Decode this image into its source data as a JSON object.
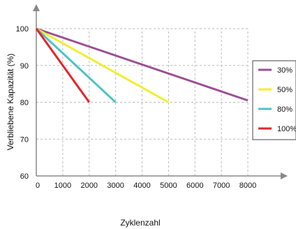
{
  "chart_data": {
    "type": "line",
    "xlabel": "Zyklenzahl",
    "ylabel": "Verbliebene Kapazität (%)",
    "xlim": [
      0,
      8000
    ],
    "ylim": [
      60,
      100
    ],
    "x_ticks": [
      "0",
      "1000",
      "2000",
      "3000",
      "4000",
      "5000",
      "6000",
      "7000",
      "8000"
    ],
    "y_ticks": [
      "60",
      "70",
      "80",
      "90",
      "100"
    ],
    "grid": true,
    "legend_position": "right",
    "series": [
      {
        "name": "30%",
        "color": "#9b4f96",
        "x": [
          0,
          8000
        ],
        "y": [
          100,
          80.5
        ]
      },
      {
        "name": "50%",
        "color": "#f2ee2e",
        "x": [
          0,
          5000
        ],
        "y": [
          100,
          80
        ]
      },
      {
        "name": "80%",
        "color": "#4fc3c6",
        "x": [
          0,
          3000
        ],
        "y": [
          100,
          80
        ]
      },
      {
        "name": "100%",
        "color": "#e3262b",
        "x": [
          0,
          2000
        ],
        "y": [
          100,
          80
        ]
      }
    ]
  }
}
